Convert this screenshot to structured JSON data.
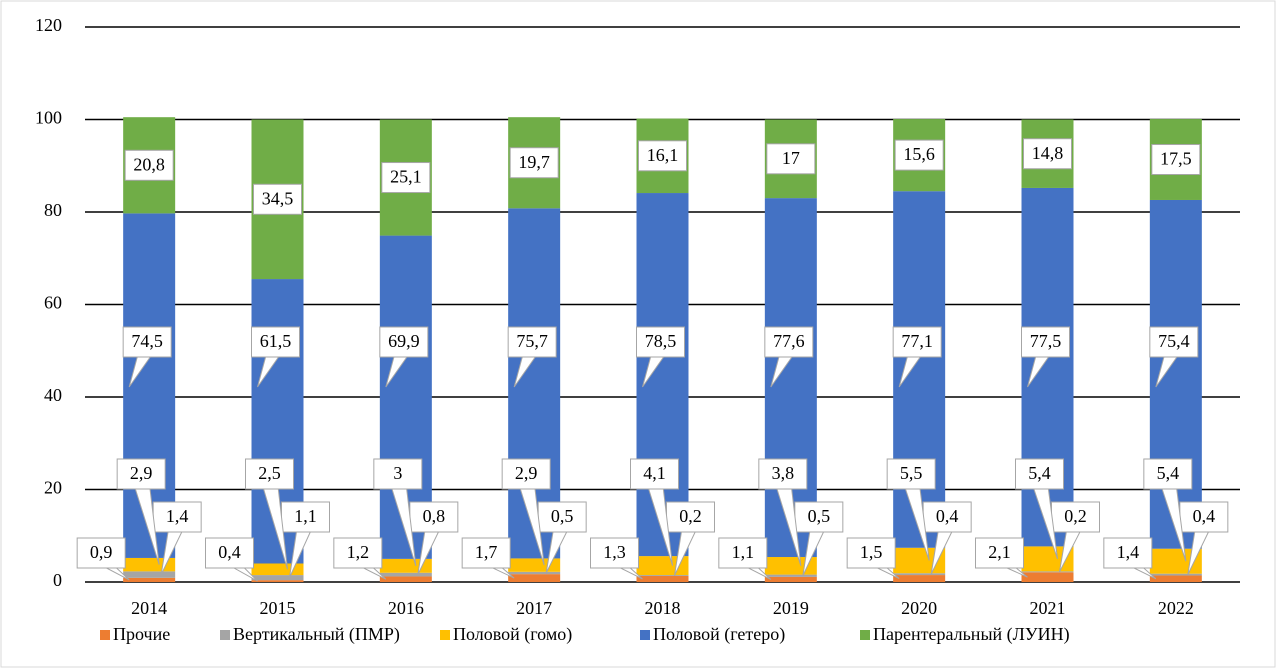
{
  "chart_data": {
    "type": "stacked_bar",
    "categories": [
      "2014",
      "2015",
      "2016",
      "2017",
      "2018",
      "2019",
      "2020",
      "2021",
      "2022"
    ],
    "series": [
      {
        "name": "Прочие",
        "color": "#ed7d31",
        "values": [
          0.9,
          0.4,
          1.2,
          1.7,
          1.3,
          1.1,
          1.5,
          2.1,
          1.4
        ],
        "value_labels": [
          "0,9",
          "0,4",
          "1,2",
          "1,7",
          "1,3",
          "1,1",
          "1,5",
          "2,1",
          "1,4"
        ]
      },
      {
        "name": "Вертикальный (ПМР)",
        "color": "#a5a5a5",
        "values": [
          1.4,
          1.1,
          0.8,
          0.5,
          0.2,
          0.5,
          0.4,
          0.2,
          0.4
        ],
        "value_labels": [
          "1,4",
          "1,1",
          "0,8",
          "0,5",
          "0,2",
          "0,5",
          "0,4",
          "0,2",
          "0,4"
        ]
      },
      {
        "name": "Половой (гомо)",
        "color": "#ffc000",
        "values": [
          2.9,
          2.5,
          3,
          2.9,
          4.1,
          3.8,
          5.5,
          5.4,
          5.4
        ],
        "value_labels": [
          "2,9",
          "2,5",
          "3",
          "2,9",
          "4,1",
          "3,8",
          "5,5",
          "5,4",
          "5,4"
        ]
      },
      {
        "name": "Половой (гетеро)",
        "color": "#4472c4",
        "values": [
          74.5,
          61.5,
          69.9,
          75.7,
          78.5,
          77.6,
          77.1,
          77.5,
          75.4
        ],
        "value_labels": [
          "74,5",
          "61,5",
          "69,9",
          "75,7",
          "78,5",
          "77,6",
          "77,1",
          "77,5",
          "75,4"
        ]
      },
      {
        "name": "Парентеральный (ЛУИН)",
        "color": "#70ad47",
        "values": [
          20.8,
          34.5,
          25.1,
          19.7,
          16.1,
          17,
          15.6,
          14.8,
          17.5
        ],
        "value_labels": [
          "20,8",
          "34,5",
          "25,1",
          "19,7",
          "16,1",
          "17",
          "15,6",
          "14,8",
          "17,5"
        ]
      }
    ],
    "ylim": [
      0,
      120
    ],
    "yticks": [
      0,
      20,
      40,
      60,
      80,
      100,
      120
    ],
    "grid": true,
    "legend": "bottom"
  }
}
